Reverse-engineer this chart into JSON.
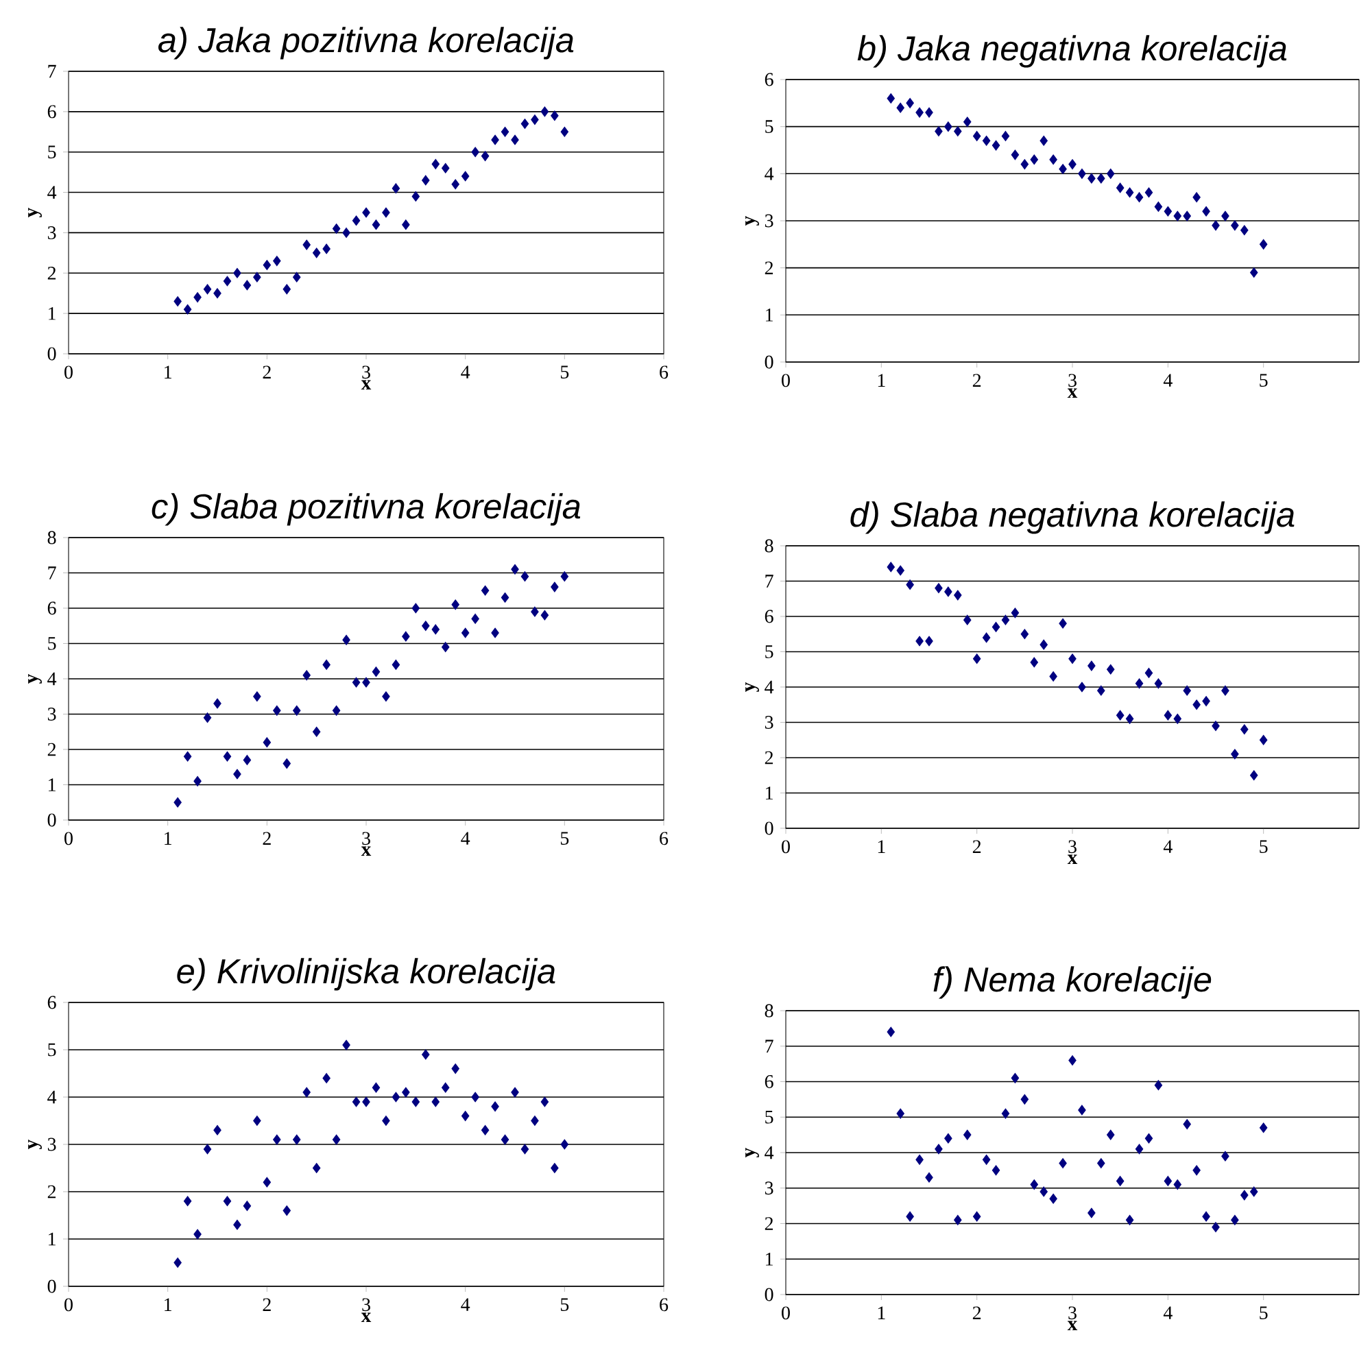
{
  "chart_data": [
    {
      "type": "scatter",
      "title": "a) Jaka pozitivna korelacija",
      "xlabel": "x",
      "ylabel": "y",
      "color": "#000080",
      "marker": "diamond",
      "grid": "y",
      "xlim": [
        0,
        6
      ],
      "xticks": [
        0,
        1,
        2,
        3,
        4,
        5,
        6
      ],
      "ylim": [
        0,
        7
      ],
      "yticks": [
        0,
        1,
        2,
        3,
        4,
        5,
        6,
        7
      ],
      "x": [
        1.1,
        1.2,
        1.3,
        1.4,
        1.5,
        1.6,
        1.7,
        1.8,
        1.9,
        2.0,
        2.1,
        2.2,
        2.3,
        2.4,
        2.5,
        2.6,
        2.7,
        2.8,
        2.9,
        3.0,
        3.1,
        3.2,
        3.3,
        3.4,
        3.5,
        3.6,
        3.7,
        3.8,
        3.9,
        4.0,
        4.1,
        4.2,
        4.3,
        4.4,
        4.5,
        4.6,
        4.7,
        4.8,
        4.9,
        5.0
      ],
      "values": [
        1.3,
        1.1,
        1.4,
        1.6,
        1.5,
        1.8,
        2.0,
        1.7,
        1.9,
        2.2,
        2.3,
        1.6,
        1.9,
        2.7,
        2.5,
        2.6,
        3.1,
        3.0,
        3.3,
        3.5,
        3.2,
        3.5,
        4.1,
        3.2,
        3.9,
        4.3,
        4.7,
        4.6,
        4.2,
        4.4,
        5.0,
        4.9,
        5.3,
        5.5,
        5.3,
        5.7,
        5.8,
        6.0,
        5.9,
        5.5
      ]
    },
    {
      "type": "scatter",
      "title": "b) Jaka negativna korelacija",
      "xlabel": "x",
      "ylabel": "y",
      "color": "#000080",
      "marker": "diamond",
      "grid": "y",
      "xlim": [
        0,
        6
      ],
      "xticks": [
        0,
        1,
        2,
        3,
        4,
        5
      ],
      "ylim": [
        0,
        6
      ],
      "yticks": [
        0,
        1,
        2,
        3,
        4,
        5,
        6
      ],
      "x": [
        1.1,
        1.2,
        1.3,
        1.4,
        1.5,
        1.6,
        1.7,
        1.8,
        1.9,
        2.0,
        2.1,
        2.2,
        2.3,
        2.4,
        2.5,
        2.6,
        2.7,
        2.8,
        2.9,
        3.0,
        3.1,
        3.2,
        3.3,
        3.4,
        3.5,
        3.6,
        3.7,
        3.8,
        3.9,
        4.0,
        4.1,
        4.2,
        4.3,
        4.4,
        4.5,
        4.6,
        4.7,
        4.8,
        4.9,
        5.0
      ],
      "values": [
        5.6,
        5.4,
        5.5,
        5.3,
        5.3,
        4.9,
        5.0,
        4.9,
        5.1,
        4.8,
        4.7,
        4.6,
        4.8,
        4.4,
        4.2,
        4.3,
        4.7,
        4.3,
        4.1,
        4.2,
        4.0,
        3.9,
        3.9,
        4.0,
        3.7,
        3.6,
        3.5,
        3.6,
        3.3,
        3.2,
        3.1,
        3.1,
        3.5,
        3.2,
        2.9,
        3.1,
        2.9,
        2.8,
        1.9,
        2.5
      ]
    },
    {
      "type": "scatter",
      "title": "c) Slaba pozitivna korelacija",
      "xlabel": "x",
      "ylabel": "y",
      "color": "#000080",
      "marker": "diamond",
      "grid": "y",
      "xlim": [
        0,
        6
      ],
      "xticks": [
        0,
        1,
        2,
        3,
        4,
        5,
        6
      ],
      "ylim": [
        0,
        8
      ],
      "yticks": [
        0,
        1,
        2,
        3,
        4,
        5,
        6,
        7,
        8
      ],
      "x": [
        1.1,
        1.2,
        1.3,
        1.4,
        1.5,
        1.6,
        1.7,
        1.8,
        1.9,
        2.0,
        2.1,
        2.2,
        2.3,
        2.4,
        2.5,
        2.6,
        2.7,
        2.8,
        2.9,
        3.0,
        3.1,
        3.2,
        3.3,
        3.4,
        3.5,
        3.6,
        3.7,
        3.8,
        3.9,
        4.0,
        4.1,
        4.2,
        4.3,
        4.4,
        4.5,
        4.6,
        4.7,
        4.8,
        4.9,
        5.0
      ],
      "values": [
        0.5,
        1.8,
        1.1,
        2.9,
        3.3,
        1.8,
        1.3,
        1.7,
        3.5,
        2.2,
        3.1,
        1.6,
        3.1,
        4.1,
        2.5,
        4.4,
        3.1,
        5.1,
        3.9,
        3.9,
        4.2,
        3.5,
        4.4,
        5.2,
        6.0,
        5.5,
        5.4,
        4.9,
        6.1,
        5.3,
        5.7,
        6.5,
        5.3,
        6.3,
        7.1,
        6.9,
        5.9,
        5.8,
        6.6,
        6.9
      ]
    },
    {
      "type": "scatter",
      "title": "d) Slaba negativna korelacija",
      "xlabel": "x",
      "ylabel": "y",
      "color": "#000080",
      "marker": "diamond",
      "grid": "y",
      "xlim": [
        0,
        6
      ],
      "xticks": [
        0,
        1,
        2,
        3,
        4,
        5
      ],
      "ylim": [
        0,
        8
      ],
      "yticks": [
        0,
        1,
        2,
        3,
        4,
        5,
        6,
        7,
        8
      ],
      "x": [
        1.1,
        1.2,
        1.3,
        1.4,
        1.5,
        1.6,
        1.7,
        1.8,
        1.9,
        2.0,
        2.1,
        2.2,
        2.3,
        2.4,
        2.5,
        2.6,
        2.7,
        2.8,
        2.9,
        3.0,
        3.1,
        3.2,
        3.3,
        3.4,
        3.5,
        3.6,
        3.7,
        3.8,
        3.9,
        4.0,
        4.1,
        4.2,
        4.3,
        4.4,
        4.5,
        4.6,
        4.7,
        4.8,
        4.9,
        5.0
      ],
      "values": [
        7.4,
        7.3,
        6.9,
        5.3,
        5.3,
        6.8,
        6.7,
        6.6,
        5.9,
        4.8,
        5.4,
        5.7,
        5.9,
        6.1,
        5.5,
        4.7,
        5.2,
        4.3,
        5.8,
        4.8,
        4.0,
        4.6,
        3.9,
        4.5,
        3.2,
        3.1,
        4.1,
        4.4,
        4.1,
        3.2,
        3.1,
        3.9,
        3.5,
        3.6,
        2.9,
        3.9,
        2.1,
        2.8,
        1.5,
        2.5
      ]
    },
    {
      "type": "scatter",
      "title": "e) Krivolinijska korelacija",
      "xlabel": "x",
      "ylabel": "y",
      "color": "#000080",
      "marker": "diamond",
      "grid": "y",
      "xlim": [
        0,
        6
      ],
      "xticks": [
        0,
        1,
        2,
        3,
        4,
        5,
        6
      ],
      "ylim": [
        0,
        6
      ],
      "yticks": [
        0,
        1,
        2,
        3,
        4,
        5,
        6
      ],
      "x": [
        1.1,
        1.2,
        1.3,
        1.4,
        1.5,
        1.6,
        1.7,
        1.8,
        1.9,
        2.0,
        2.1,
        2.2,
        2.3,
        2.4,
        2.5,
        2.6,
        2.7,
        2.8,
        2.9,
        3.0,
        3.1,
        3.2,
        3.3,
        3.4,
        3.5,
        3.6,
        3.7,
        3.8,
        3.9,
        4.0,
        4.1,
        4.2,
        4.3,
        4.4,
        4.5,
        4.6,
        4.7,
        4.8,
        4.9,
        5.0
      ],
      "values": [
        0.5,
        1.8,
        1.1,
        2.9,
        3.3,
        1.8,
        1.3,
        1.7,
        3.5,
        2.2,
        3.1,
        1.6,
        3.1,
        4.1,
        2.5,
        4.4,
        3.1,
        5.1,
        3.9,
        3.9,
        4.2,
        3.5,
        4.0,
        4.1,
        3.9,
        4.9,
        3.9,
        4.2,
        4.6,
        3.6,
        4.0,
        3.3,
        3.8,
        3.1,
        4.1,
        2.9,
        3.5,
        3.9,
        2.5,
        3.0
      ]
    },
    {
      "type": "scatter",
      "title": "f) Nema korelacije",
      "xlabel": "x",
      "ylabel": "y",
      "color": "#000080",
      "marker": "diamond",
      "grid": "y",
      "xlim": [
        0,
        6
      ],
      "xticks": [
        0,
        1,
        2,
        3,
        4,
        5
      ],
      "ylim": [
        0,
        8
      ],
      "yticks": [
        0,
        1,
        2,
        3,
        4,
        5,
        6,
        7,
        8
      ],
      "x": [
        1.1,
        1.2,
        1.3,
        1.4,
        1.5,
        1.6,
        1.7,
        1.8,
        1.9,
        2.0,
        2.1,
        2.2,
        2.3,
        2.4,
        2.5,
        2.6,
        2.7,
        2.8,
        2.9,
        3.0,
        3.1,
        3.2,
        3.3,
        3.4,
        3.5,
        3.6,
        3.7,
        3.8,
        3.9,
        4.0,
        4.1,
        4.2,
        4.3,
        4.4,
        4.5,
        4.6,
        4.7,
        4.8,
        4.9,
        5.0
      ],
      "values": [
        7.4,
        5.1,
        2.2,
        3.8,
        3.3,
        4.1,
        4.4,
        2.1,
        4.5,
        2.2,
        3.8,
        3.5,
        5.1,
        6.1,
        5.5,
        3.1,
        2.9,
        2.7,
        3.7,
        6.6,
        5.2,
        2.3,
        3.7,
        4.5,
        3.2,
        2.1,
        4.1,
        4.4,
        5.9,
        3.2,
        3.1,
        4.8,
        3.5,
        2.2,
        1.9,
        3.9,
        2.1,
        2.8,
        2.9,
        4.7
      ]
    }
  ]
}
